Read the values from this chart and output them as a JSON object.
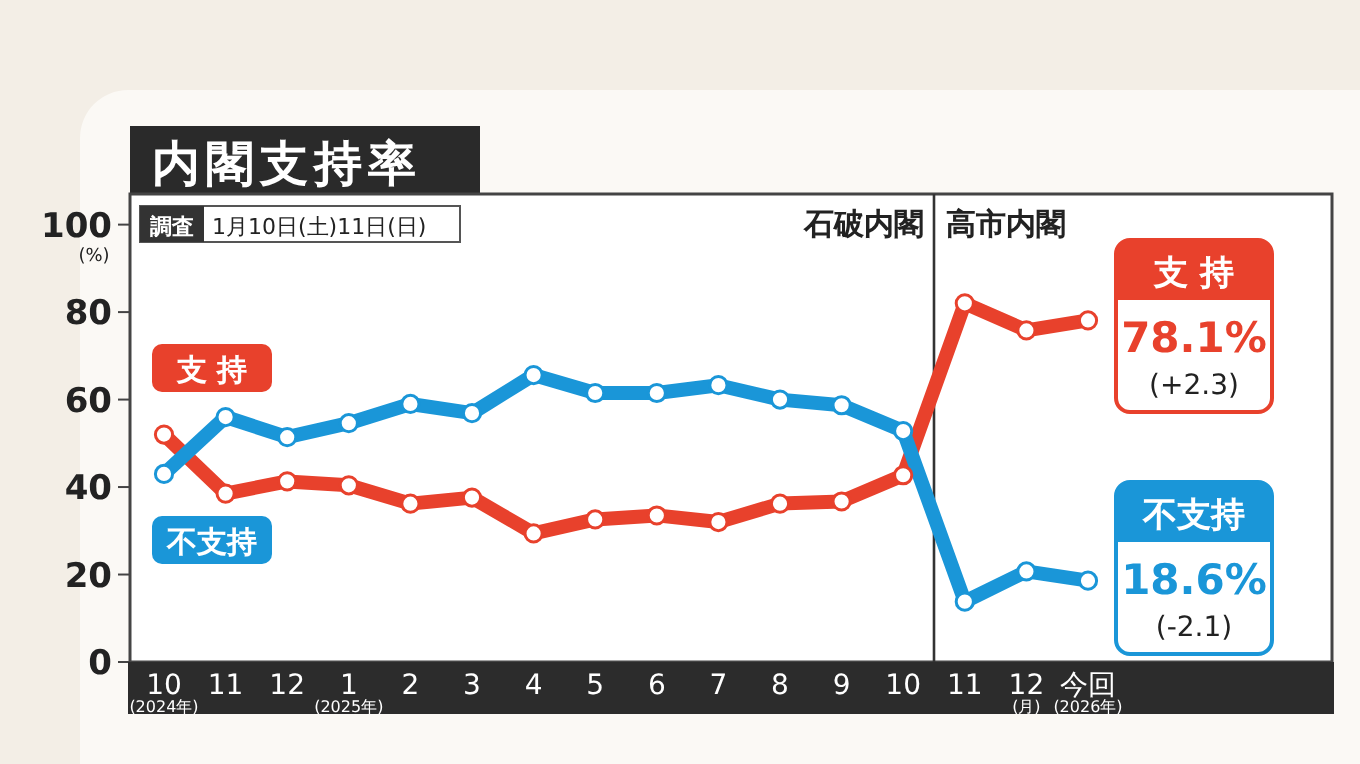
{
  "chart_data": {
    "type": "line",
    "title": "内閣支持率",
    "subtitle": "調査 1月10日(土)11日(日)",
    "ylabel": "(%)",
    "categories": [
      "10 (2024年)",
      "11",
      "12",
      "1 (2025年)",
      "2",
      "3",
      "4",
      "5",
      "6",
      "7",
      "8",
      "9",
      "10",
      "11",
      "12 (月)",
      "今回 (2026年)"
    ],
    "series": [
      {
        "name": "支 持",
        "color": "#e8412c",
        "values": [
          52,
          38.5,
          41.3,
          40.4,
          36.2,
          37.6,
          29.4,
          32.6,
          33.5,
          32,
          36.2,
          36.7,
          42.7,
          82,
          75.8,
          78.1
        ],
        "value_labels": [
          null,
          null,
          null,
          null,
          null,
          null,
          null,
          null,
          null,
          null,
          null,
          null,
          null,
          null,
          null,
          "78.1%"
        ]
      },
      {
        "name": "不支持",
        "color": "#1a96d8",
        "values": [
          43,
          56,
          51.4,
          54.6,
          59,
          56.9,
          65.6,
          61.5,
          61.5,
          63.3,
          60,
          58.7,
          52.8,
          13.8,
          20.7,
          18.6
        ],
        "value_labels": [
          null,
          null,
          null,
          null,
          null,
          null,
          null,
          null,
          null,
          null,
          null,
          null,
          null,
          null,
          null,
          "18.6%"
        ]
      }
    ],
    "ylim": [
      0,
      107
    ],
    "yticks": [
      0,
      20,
      40,
      60,
      80,
      100
    ],
    "grid": false,
    "marker": "circle",
    "line_style": "solid",
    "annotations": [
      "石破内閣",
      "高市内閣",
      "(+2.3)",
      "(-2.1)"
    ]
  }
}
